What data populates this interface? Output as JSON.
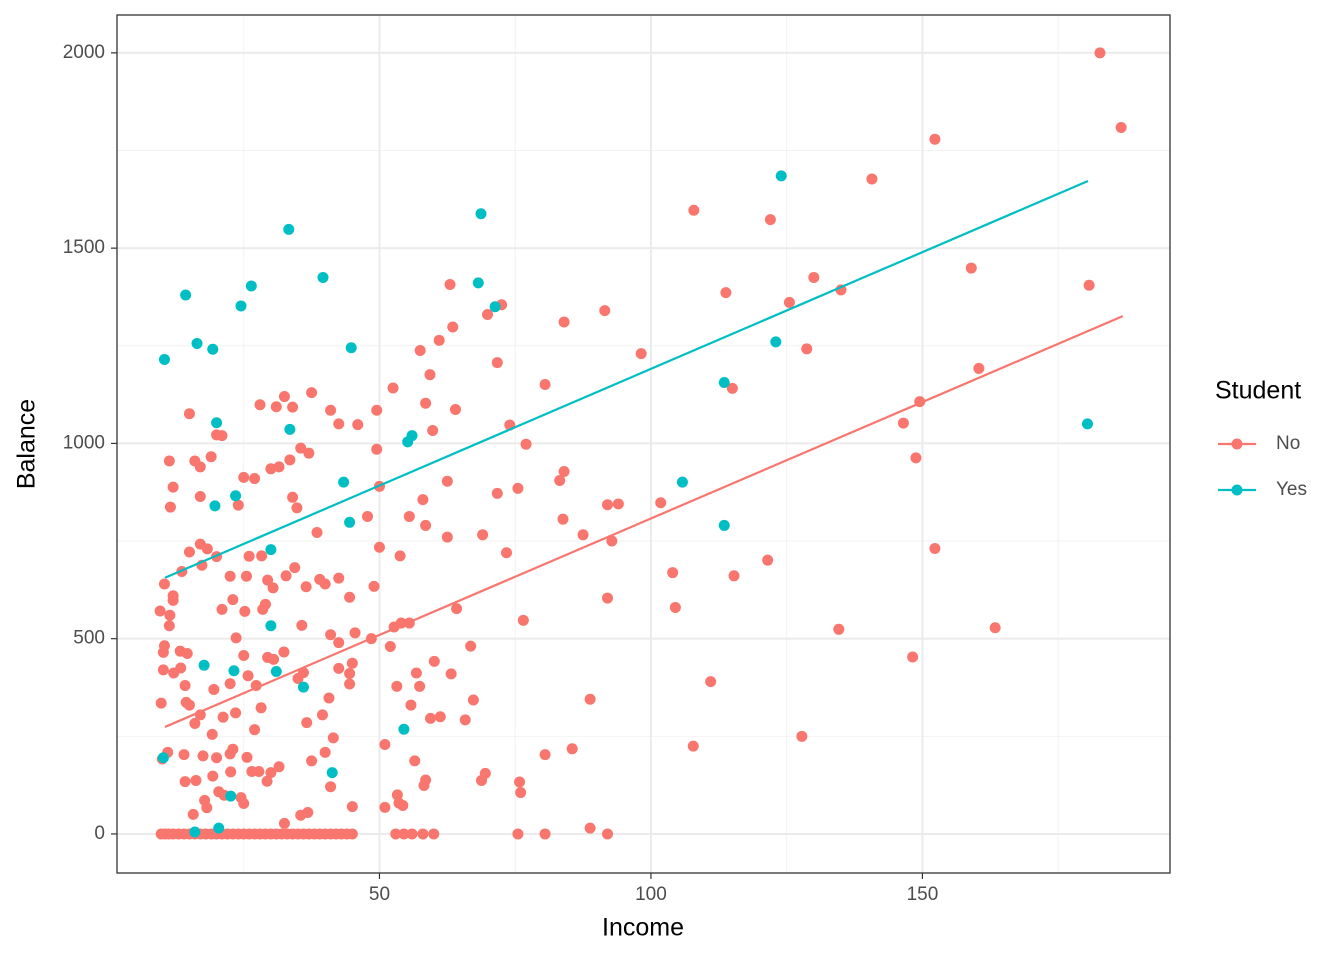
{
  "chart_data": {
    "type": "scatter",
    "x_label": "Income",
    "y_label": "Balance",
    "xlim": [
      1.66,
      195.6
    ],
    "ylim": [
      -100,
      2097
    ],
    "xticks": [
      50,
      100,
      150
    ],
    "yticks": [
      0,
      500,
      1000,
      1500,
      2000
    ],
    "grid": true,
    "legend": "right",
    "legend_title": "Student",
    "series": [
      {
        "name": "No",
        "color": "#F8766D",
        "x": [
          182.7,
          186.6,
          152.3,
          140.7,
          107.9,
          122,
          159,
          130,
          63,
          180.7,
          135,
          113.8,
          125.5,
          72.5,
          69.9,
          84,
          91.5,
          63.5,
          61,
          57.5,
          128.7,
          98.2,
          71.7,
          160.4,
          59.3,
          52.5,
          80.5,
          115,
          32.5,
          37.5,
          28,
          31,
          34,
          42.5,
          46,
          41,
          49.5,
          64,
          58.5,
          74,
          149.5,
          146.5,
          15,
          20,
          21,
          59.8,
          77,
          49.5,
          35.5,
          37,
          33.5,
          19,
          16,
          11.3,
          17,
          25,
          27,
          30,
          31.5,
          62.5,
          83.2,
          84,
          148.8,
          50,
          75.5,
          71.7,
          58,
          92,
          94,
          101.8,
          34,
          12,
          17,
          11.5,
          24,
          34.8,
          47.8,
          55.5,
          83.8,
          58.5,
          38.5,
          62.5,
          69,
          87.5,
          92.8,
          50,
          53.8,
          73.4,
          152.3,
          121.5,
          17,
          18.3,
          15,
          20,
          26,
          28.3,
          13.6,
          17.3,
          22.5,
          25.5,
          29.4,
          30.4,
          32.8,
          34.4,
          36.5,
          39,
          40,
          42.5,
          44.5,
          49,
          104,
          115.3,
          10.4,
          12,
          12,
          21,
          23,
          25.2,
          28.5,
          29,
          35.7,
          41,
          42.5,
          45.5,
          48.5,
          52.7,
          54,
          55.5,
          64.2,
          76.5,
          92,
          104.5,
          134.6,
          163.4,
          9.6,
          11.4,
          11.3,
          23.6,
          10.4,
          10.2,
          13.3,
          14.6,
          12.1,
          10.2,
          13.4,
          14.2,
          9.8,
          14.4,
          19.5,
          22.5,
          25,
          25.8,
          27.3,
          28.2,
          29.4,
          30.5,
          32.4,
          35,
          36,
          36.6,
          39.5,
          40.7,
          42.5,
          44.5,
          44.5,
          45,
          52,
          53.2,
          55.8,
          56.8,
          57.4,
          59.4,
          60.1,
          61.2,
          63.2,
          65.8,
          66.8,
          67.3,
          88.8,
          111,
          148.2,
          15,
          16,
          17,
          19.2,
          21.2,
          23.5,
          27,
          11,
          14,
          17.5,
          20,
          22.5,
          23,
          25.6,
          27.8,
          30,
          31.5,
          37.5,
          40,
          41.5,
          51,
          56.5,
          80.5,
          85.5,
          107.8,
          127.8,
          10,
          14.2,
          16.2,
          19.3,
          20.4,
          22.6,
          26.5,
          29.3,
          41,
          53.3,
          58.2,
          58.5,
          68.8,
          69.5,
          75.8,
          76,
          17.8,
          18.2,
          21.4,
          24.5,
          25,
          36.8,
          45,
          51,
          53.6,
          54.3,
          88.8,
          32.5,
          35.5,
          15.7,
          9.8,
          10.5,
          11.2,
          12,
          13,
          14,
          15,
          16,
          17,
          18,
          19,
          20,
          21,
          22,
          23,
          24,
          25,
          26,
          27,
          28,
          29,
          30,
          31,
          32,
          33,
          34,
          35,
          36,
          37,
          38,
          39,
          40,
          41,
          42,
          43,
          44,
          45,
          53,
          54.5,
          56,
          58,
          60,
          75.5,
          80.5,
          92
        ],
        "values": [
          2000,
          1809,
          1779,
          1677,
          1597,
          1573,
          1449,
          1425,
          1407,
          1405,
          1393,
          1386,
          1361,
          1355,
          1330,
          1311,
          1340,
          1298,
          1264,
          1238,
          1242,
          1230,
          1207,
          1192,
          1176,
          1142,
          1151,
          1141,
          1120,
          1130,
          1099,
          1094,
          1093,
          1050,
          1048,
          1085,
          1085,
          1087,
          1103,
          1047,
          1107,
          1052,
          1076,
          1022,
          1020,
          1033,
          998,
          985,
          988,
          975,
          958,
          966,
          955,
          955,
          940,
          913,
          910,
          935,
          940,
          903,
          905,
          928,
          963,
          890,
          885,
          872,
          856,
          843,
          845,
          848,
          862,
          888,
          864,
          837,
          842,
          835,
          813,
          813,
          806,
          790,
          772,
          760,
          766,
          766,
          750,
          734,
          712,
          720,
          731,
          701,
          742,
          730,
          722,
          710,
          711,
          712,
          672,
          688,
          660,
          660,
          650,
          630,
          661,
          682,
          633,
          652,
          640,
          655,
          606,
          634,
          669,
          661,
          640,
          610,
          598,
          575,
          600,
          570,
          575,
          588,
          534,
          510,
          490,
          515,
          500,
          530,
          540,
          540,
          577,
          547,
          604,
          580,
          524,
          528,
          571,
          560,
          533,
          502,
          482,
          465,
          468,
          462,
          412,
          420,
          425,
          380,
          335,
          337,
          370,
          385,
          457,
          405,
          380,
          323,
          452,
          447,
          466,
          398,
          413,
          285,
          305,
          348,
          424,
          411,
          384,
          437,
          480,
          378,
          330,
          412,
          378,
          296,
          442,
          300,
          410,
          292,
          481,
          343,
          345,
          390,
          453,
          330,
          283,
          305,
          255,
          299,
          310,
          267,
          209,
          203,
          200,
          195,
          205,
          217,
          196,
          160,
          157,
          172,
          187,
          209,
          246,
          229,
          187,
          203,
          218,
          225,
          250,
          192,
          134,
          137,
          148,
          108,
          159,
          160,
          135,
          121,
          100,
          124,
          138,
          137,
          155,
          133,
          106,
          86,
          67,
          99,
          93,
          78,
          55,
          70,
          68,
          79,
          73,
          15,
          27,
          48,
          50,
          0,
          0,
          0,
          0,
          0,
          0,
          0,
          0,
          0,
          0,
          0,
          0,
          0,
          0,
          0,
          0,
          0,
          0,
          0,
          0,
          0,
          0,
          0,
          0,
          0,
          0,
          0,
          0,
          0,
          0,
          0,
          0,
          0,
          0,
          0,
          0,
          0,
          0,
          0,
          0,
          0,
          0,
          0,
          0,
          0
        ],
        "fit": {
          "x": [
            10.5,
            186.9
          ],
          "values": [
            274,
            1326
          ]
        }
      },
      {
        "name": "Yes",
        "color": "#00BFC4",
        "x": [
          10.4,
          14.3,
          16.4,
          19.3,
          24.5,
          26.4,
          33.3,
          39.6,
          44.8,
          68.7,
          68.2,
          71.3,
          124,
          123,
          113.5,
          180.4,
          20,
          33.5,
          56,
          55.2,
          43.4,
          105.8,
          23.5,
          19.7,
          44.5,
          113.5,
          30,
          30,
          17.7,
          23.2,
          31,
          36,
          54.5,
          41.3,
          22.6,
          20.4,
          10.2,
          16
        ],
        "values": [
          1215,
          1380,
          1256,
          1241,
          1352,
          1403,
          1548,
          1425,
          1245,
          1588,
          1411,
          1350,
          1685,
          1260,
          1156,
          1050,
          1053,
          1036,
          1020,
          1004,
          901,
          901,
          866,
          840,
          798,
          790,
          728,
          533,
          432,
          418,
          416,
          376,
          268,
          157,
          97,
          15,
          195,
          5
        ],
        "fit": {
          "x": [
            10.5,
            180.5
          ],
          "values": [
            656,
            1672
          ]
        }
      }
    ]
  }
}
